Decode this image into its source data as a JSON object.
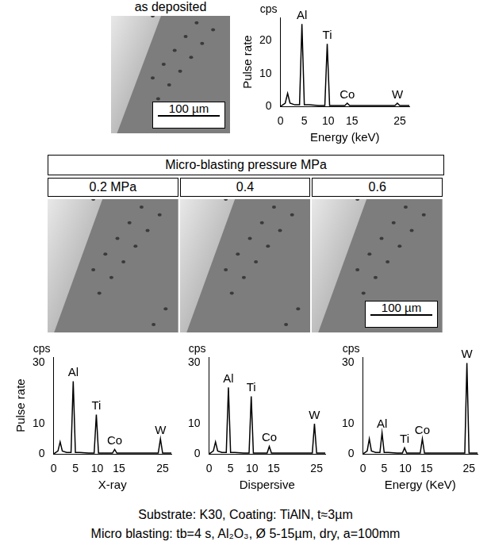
{
  "top_panel": {
    "label": "as deposited",
    "scale_bar": "100 µm"
  },
  "header": "Micro-blasting pressure MPa",
  "columns": [
    {
      "label": "0.2 MPa"
    },
    {
      "label": "0.4"
    },
    {
      "label": "0.6",
      "scale_bar": "100 µm"
    }
  ],
  "caption": [
    "Substrate: K30, Coating: TiAlN, t≈3µm",
    "Micro blasting: tb=4 s, Al₂O₃, Ø 5-15µm, dry, a=100mm"
  ],
  "chart_data": [
    {
      "type": "line",
      "color": "#000000",
      "grid": false,
      "x": [
        0,
        1,
        1.5,
        2,
        3,
        4,
        4.5,
        5,
        6,
        8,
        9.3,
        9.8,
        10.3,
        12,
        13.5,
        14,
        14.5,
        18,
        22,
        24,
        24.5,
        25,
        27
      ],
      "values": [
        0,
        1,
        4,
        1,
        0.5,
        0.5,
        25,
        0.5,
        0.5,
        0.3,
        0.3,
        19,
        0.3,
        0.3,
        0.3,
        1,
        0.3,
        0.3,
        0.3,
        0.3,
        1,
        0.3,
        0.3
      ],
      "xlim": [
        0,
        27
      ],
      "xticks": [
        0,
        5,
        10,
        15,
        25
      ],
      "ylim": [
        0,
        27
      ],
      "yticks": [
        0,
        10,
        20
      ],
      "x_label": "Energy (keV)",
      "y_label": "Pulse rate",
      "y_unit": "cps",
      "annotations": [
        {
          "text": "Al",
          "x": 4.5,
          "y": 25
        },
        {
          "text": "Ti",
          "x": 9.8,
          "y": 19
        },
        {
          "text": "Co",
          "x": 14,
          "y": 1
        },
        {
          "text": "W",
          "x": 24.5,
          "y": 1
        }
      ]
    },
    {
      "type": "line",
      "color": "#000000",
      "grid": false,
      "x": [
        0,
        1,
        1.5,
        2,
        3,
        4,
        4.5,
        5,
        6,
        8,
        9.3,
        9.8,
        10.3,
        12,
        13.5,
        14,
        14.5,
        18,
        22,
        24,
        24.5,
        25,
        27
      ],
      "values": [
        0,
        1,
        4,
        1,
        0.5,
        0.5,
        24,
        0.5,
        0.5,
        0.3,
        0.3,
        13,
        0.3,
        0.3,
        0.3,
        1.5,
        0.3,
        0.3,
        0.3,
        0.3,
        5,
        0.3,
        0.3
      ],
      "xlim": [
        0,
        27
      ],
      "xticks": [
        0,
        5,
        10,
        15,
        25
      ],
      "ylim": [
        0,
        32
      ],
      "yticks": [
        0,
        10,
        30
      ],
      "x_label": "X-ray",
      "y_label": "Pulse rate",
      "y_unit": "cps",
      "annotations": [
        {
          "text": "Al",
          "x": 4.5,
          "y": 24
        },
        {
          "text": "Ti",
          "x": 9.8,
          "y": 13
        },
        {
          "text": "Co",
          "x": 14,
          "y": 1.5
        },
        {
          "text": "W",
          "x": 24.5,
          "y": 5
        }
      ]
    },
    {
      "type": "line",
      "color": "#000000",
      "grid": false,
      "x": [
        0,
        1,
        1.5,
        2,
        3,
        4,
        4.5,
        5,
        6,
        8,
        9.3,
        9.8,
        10.3,
        12,
        13.5,
        14,
        14.5,
        18,
        22,
        24,
        24.5,
        25,
        27
      ],
      "values": [
        0,
        1,
        4,
        1,
        0.5,
        0.5,
        22,
        0.5,
        0.5,
        0.3,
        0.3,
        19,
        0.3,
        0.3,
        0.3,
        2.5,
        0.3,
        0.3,
        0.3,
        0.3,
        10,
        0.3,
        0.3
      ],
      "xlim": [
        0,
        27
      ],
      "xticks": [
        0,
        5,
        10,
        15,
        25
      ],
      "ylim": [
        0,
        32
      ],
      "yticks": [
        0,
        10,
        30
      ],
      "x_label": "Dispersive",
      "y_unit": "cps",
      "annotations": [
        {
          "text": "Al",
          "x": 4.5,
          "y": 22
        },
        {
          "text": "Ti",
          "x": 9.8,
          "y": 19
        },
        {
          "text": "Co",
          "x": 14,
          "y": 2.5
        },
        {
          "text": "W",
          "x": 24.5,
          "y": 10
        }
      ]
    },
    {
      "type": "line",
      "color": "#000000",
      "grid": false,
      "x": [
        0,
        1,
        1.5,
        2,
        3,
        4,
        4.5,
        5,
        6,
        8,
        9.3,
        9.8,
        10.3,
        12,
        13.5,
        14,
        14.5,
        18,
        22,
        24,
        24.5,
        25,
        27
      ],
      "values": [
        0,
        1,
        5,
        1,
        0.5,
        0.5,
        7,
        0.5,
        0.5,
        0.3,
        0.3,
        2,
        0.3,
        0.3,
        0.3,
        5,
        0.3,
        0.3,
        0.3,
        0.3,
        30,
        0.3,
        0.3
      ],
      "xlim": [
        0,
        27
      ],
      "xticks": [
        0,
        5,
        10,
        15,
        25
      ],
      "ylim": [
        0,
        32
      ],
      "yticks": [
        0,
        10,
        30
      ],
      "x_label": "Energy (KeV)",
      "y_unit": "cps",
      "annotations": [
        {
          "text": "Al",
          "x": 4.5,
          "y": 7
        },
        {
          "text": "Ti",
          "x": 9.8,
          "y": 2
        },
        {
          "text": "Co",
          "x": 14,
          "y": 5
        },
        {
          "text": "W",
          "x": 24.5,
          "y": 30
        }
      ]
    }
  ]
}
